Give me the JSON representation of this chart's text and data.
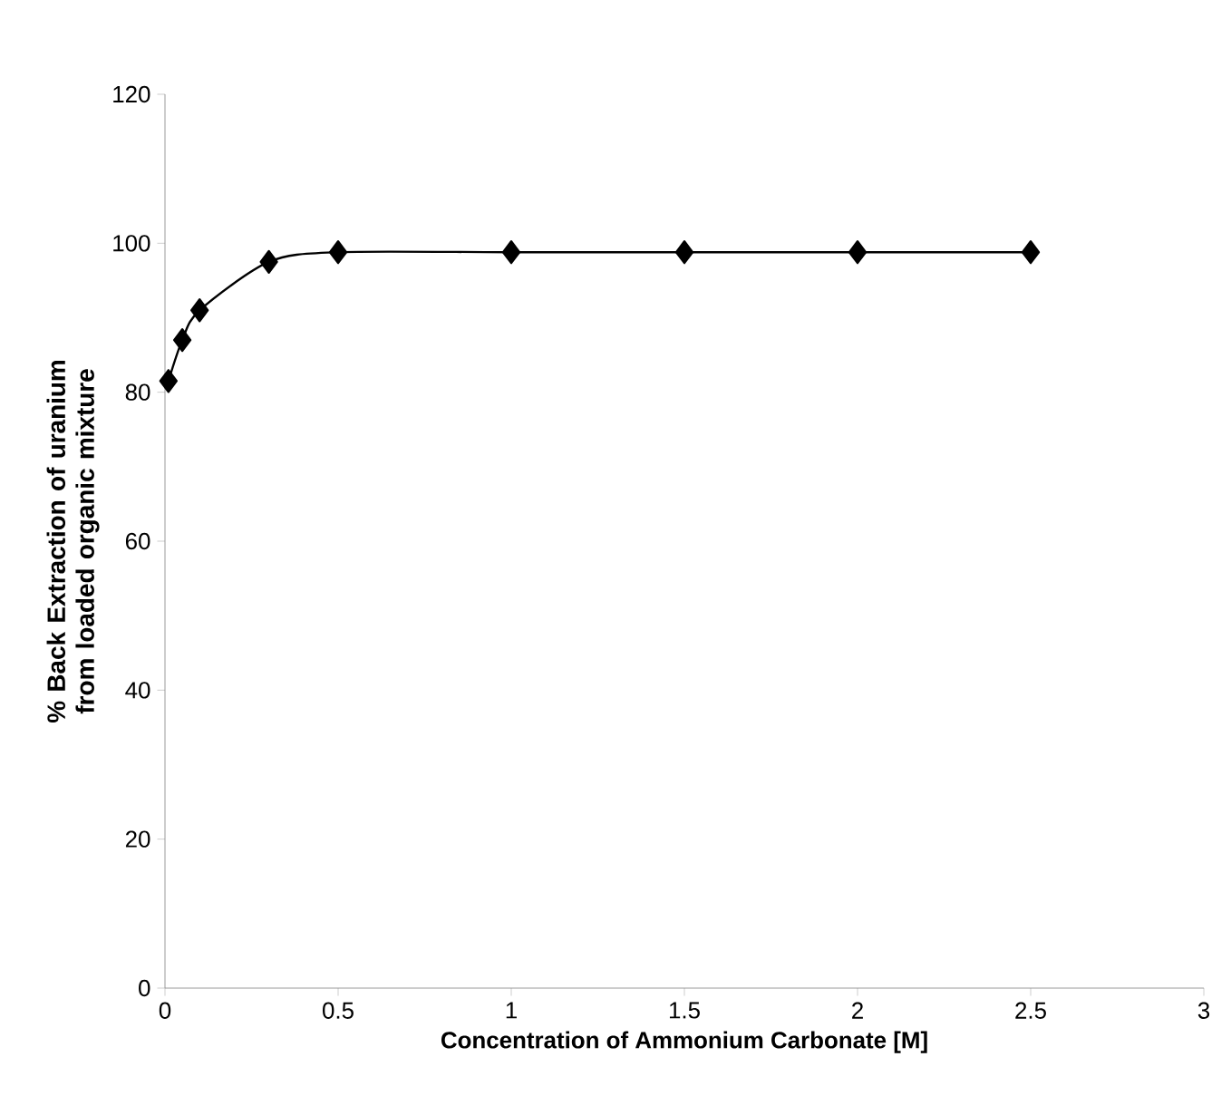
{
  "chart_data": {
    "type": "line",
    "xlabel": "Concentration of Ammonium Carbonate [M]",
    "ylabel": "% Back Extraction of uranium from loaded organic mixture",
    "x": [
      0.01,
      0.05,
      0.1,
      0.3,
      0.5,
      1,
      1.5,
      2,
      2.5
    ],
    "series": [
      {
        "color": "#000000",
        "values": [
          81.5,
          87,
          91,
          97.5,
          98.8,
          98.8,
          98.8,
          98.8,
          98.8
        ]
      }
    ],
    "xlim": [
      0,
      3
    ],
    "ylim": [
      0,
      120
    ],
    "xticks": [
      0,
      0.5,
      1,
      1.5,
      2,
      2.5,
      3
    ],
    "yticks": [
      0,
      20,
      40,
      60,
      80,
      100,
      120
    ],
    "marker": "diamond",
    "line_style": "solid",
    "grid": false
  }
}
